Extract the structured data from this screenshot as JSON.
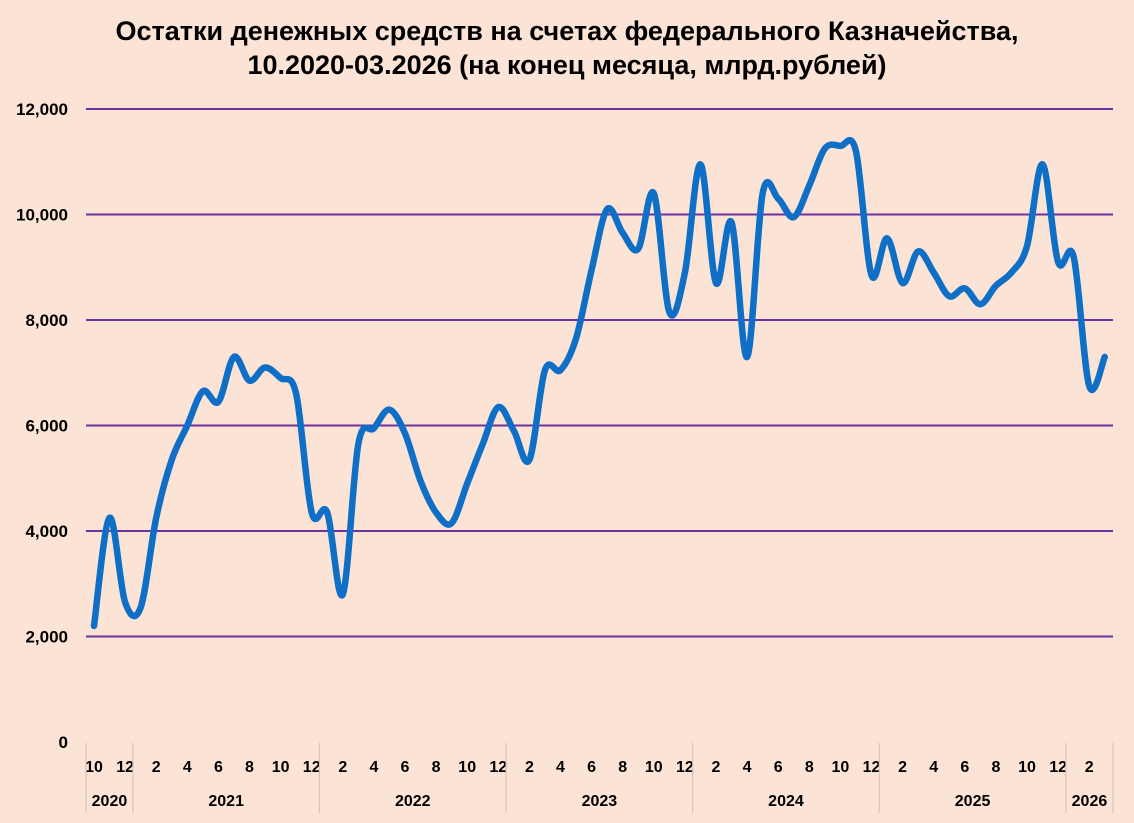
{
  "colors": {
    "background": "#fbe3d6",
    "gridline": "#7030a0",
    "series_line": "#0f6fc6",
    "axis_separator": "#d9c4b8"
  },
  "chart_data": {
    "type": "line",
    "title": "Остатки денежных средств на счетах федерального Казначейства,",
    "subtitle": "10.2020-03.2026 (на конец месяца, млрд.рублей)",
    "xlabel": "",
    "ylabel": "",
    "ylim": [
      0,
      12000
    ],
    "y_ticks": [
      "0",
      "2,000",
      "4,000",
      "6,000",
      "8,000",
      "10,000",
      "12,000"
    ],
    "y_tick_values": [
      0,
      2000,
      4000,
      6000,
      8000,
      10000,
      12000
    ],
    "grid": true,
    "legend": "none",
    "x_month_tick_labels": [
      "10",
      "12",
      "2",
      "4",
      "6",
      "8",
      "10",
      "12",
      "2",
      "4",
      "6",
      "8",
      "10",
      "12",
      "2",
      "4",
      "6",
      "8",
      "10",
      "12",
      "2",
      "4",
      "6",
      "8",
      "10",
      "12",
      "2",
      "4",
      "6",
      "8",
      "10",
      "12",
      "2"
    ],
    "x_year_labels": [
      "2020",
      "2021",
      "2022",
      "2023",
      "2024",
      "2025",
      "2026"
    ],
    "x": [
      "2020-10",
      "2020-11",
      "2020-12",
      "2021-01",
      "2021-02",
      "2021-03",
      "2021-04",
      "2021-05",
      "2021-06",
      "2021-07",
      "2021-08",
      "2021-09",
      "2021-10",
      "2021-11",
      "2021-12",
      "2022-01",
      "2022-02",
      "2022-03",
      "2022-04",
      "2022-05",
      "2022-06",
      "2022-07",
      "2022-08",
      "2022-09",
      "2022-10",
      "2022-11",
      "2022-12",
      "2023-01",
      "2023-02",
      "2023-03",
      "2023-04",
      "2023-05",
      "2023-06",
      "2023-07",
      "2023-08",
      "2023-09",
      "2023-10",
      "2023-11",
      "2023-12",
      "2024-01",
      "2024-02",
      "2024-03",
      "2024-04",
      "2024-05",
      "2024-06",
      "2024-07",
      "2024-08",
      "2024-09",
      "2024-10",
      "2024-11",
      "2024-12",
      "2025-01",
      "2025-02",
      "2025-03",
      "2025-04",
      "2025-05",
      "2025-06",
      "2025-07",
      "2025-08",
      "2025-09",
      "2025-10",
      "2025-11",
      "2025-12",
      "2026-01",
      "2026-02",
      "2026-03"
    ],
    "series": [
      {
        "values": [
          2200,
          4250,
          2650,
          2550,
          4250,
          5350,
          6000,
          6650,
          6450,
          7300,
          6850,
          7100,
          6900,
          6600,
          4350,
          4350,
          2800,
          5650,
          5950,
          6300,
          5850,
          4950,
          4350,
          4150,
          4900,
          5650,
          6350,
          5900,
          5350,
          7050,
          7050,
          7650,
          8950,
          10100,
          9650,
          9350,
          10400,
          8150,
          8900,
          10950,
          8700,
          9850,
          7300,
          10400,
          10300,
          9950,
          10550,
          11250,
          11300,
          11200,
          8850,
          9550,
          8700,
          9300,
          8900,
          8450,
          8600,
          8300,
          8650,
          8900,
          9400,
          10950,
          9100,
          9200,
          6750,
          7300
        ]
      }
    ]
  }
}
